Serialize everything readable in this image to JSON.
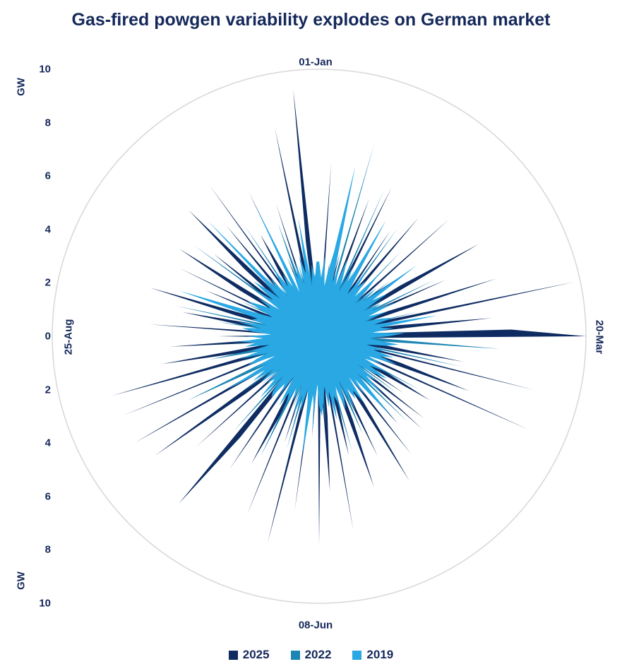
{
  "title": "Gas-fired powgen variability explodes on German market",
  "colors": {
    "title_text": "#14285a",
    "axis_text": "#14285a",
    "grid": "#d9d9d9",
    "background": "#ffffff"
  },
  "axis": {
    "unit_label": "GW",
    "tick_labels": [
      "10",
      "8",
      "6",
      "4",
      "2",
      "0",
      "2",
      "4",
      "6",
      "8",
      "10"
    ],
    "angle_labels": {
      "top": "01-Jan",
      "right": "20-Mar",
      "bottom": "08-Jun",
      "left": "25-Aug"
    }
  },
  "legend": {
    "items": [
      {
        "label": "2025",
        "color": "#0e2c62"
      },
      {
        "label": "2022",
        "color": "#1c85b4"
      },
      {
        "label": "2019",
        "color": "#29a8e4"
      }
    ]
  },
  "chart_data": {
    "type": "area",
    "polar": true,
    "title": "Gas-fired powgen variability explodes on German market",
    "radial_label": "GW",
    "rlim": [
      0,
      10
    ],
    "grid": "outer-circle-only",
    "legend_position": "bottom",
    "angle_axis": {
      "labels": [
        "01-Jan",
        "20-Mar",
        "08-Jun",
        "25-Aug"
      ],
      "positions_deg": [
        0,
        90,
        180,
        270
      ],
      "direction": "clockwise-from-top"
    },
    "series": [
      {
        "name": "2025",
        "color": "#0e2c62",
        "z": "bottom",
        "values": [
          2.1,
          1.0,
          6.5,
          1.2,
          2.8,
          0.9,
          1.5,
          3.2,
          1.1,
          2.0,
          5.5,
          1.4,
          2.2,
          6.2,
          1.0,
          3.5,
          1.2,
          4.8,
          1.6,
          2.4,
          5.8,
          1.1,
          3.0,
          1.5,
          6.6,
          1.2,
          2.5,
          4.2,
          1.0,
          3.6,
          6.9,
          1.3,
          2.0,
          5.2,
          1.1,
          2.8,
          7.0,
          1.4,
          2.2,
          9.8,
          1.2,
          3.0,
          6.5,
          1.5,
          7.2,
          10.0,
          1.8,
          4.0,
          1.2,
          2.6,
          5.5,
          1.3,
          8.3,
          1.1,
          3.2,
          6.0,
          1.4,
          8.6,
          1.2,
          2.8,
          4.8,
          1.5,
          3.8,
          1.2,
          5.0,
          2.0,
          5.2,
          1.1,
          2.4,
          4.4,
          1.3,
          5.6,
          1.8,
          3.0,
          6.4,
          1.2,
          2.2,
          5.0,
          1.5,
          3.4,
          6.0,
          1.2,
          2.6,
          4.6,
          1.4,
          7.4,
          1.1,
          3.0,
          5.8,
          1.6,
          7.8,
          1.4,
          3.6,
          1.1,
          6.6,
          1.3,
          2.4,
          8.0,
          1.2,
          4.2,
          1.6,
          7.2,
          1.1,
          3.2,
          5.4,
          1.3,
          2.0,
          6.0,
          1.2,
          4.8,
          8.2,
          1.4,
          2.8,
          1.1,
          6.2,
          1.5,
          3.5,
          7.6,
          1.2,
          2.2,
          8.0,
          1.3,
          4.0,
          1.1,
          7.9,
          1.6,
          2.6,
          8.1,
          1.2,
          3.0,
          6.0,
          1.4,
          2.4,
          5.6,
          1.1,
          3.8,
          1.3,
          6.4,
          1.2,
          2.8,
          5.2,
          1.5,
          3.2,
          6.6,
          1.1,
          2.0,
          4.6,
          1.3,
          5.8,
          1.2,
          3.4,
          6.2,
          1.4,
          2.6,
          5.0,
          1.1,
          3.8,
          6.8,
          1.2,
          2.2,
          5.4,
          1.3,
          7.0,
          1.1,
          2.8,
          4.4,
          1.5,
          6.0,
          1.2,
          3.2,
          1.4,
          5.2,
          1.1,
          2.4,
          8.0,
          1.2,
          3.6,
          9.3,
          1.5,
          2.0
        ]
      },
      {
        "name": "2022",
        "color": "#1c85b4",
        "z": "middle",
        "values": [
          1.5,
          2.2,
          1.0,
          1.8,
          2.6,
          1.2,
          2.0,
          1.4,
          7.5,
          1.1,
          2.4,
          1.3,
          6.0,
          1.0,
          2.8,
          1.5,
          2.2,
          1.2,
          5.0,
          1.4,
          2.0,
          1.1,
          4.4,
          1.3,
          2.6,
          1.0,
          3.4,
          1.5,
          2.2,
          1.2,
          2.8,
          1.4,
          4.8,
          1.1,
          2.0,
          1.3,
          2.4,
          1.0,
          3.8,
          1.2,
          2.6,
          1.5,
          2.0,
          1.1,
          3.2,
          1.4,
          2.4,
          6.8,
          1.2,
          2.8,
          1.3,
          5.5,
          1.0,
          2.2,
          1.5,
          3.0,
          1.2,
          2.6,
          1.4,
          4.2,
          1.1,
          2.4,
          1.3,
          3.6,
          1.0,
          2.0,
          1.5,
          4.6,
          1.2,
          2.8,
          1.4,
          2.2,
          1.1,
          3.0,
          1.3,
          2.6,
          1.0,
          2.0,
          4.0,
          1.2,
          2.4,
          1.5,
          4.5,
          1.1,
          2.8,
          1.3,
          2.2,
          1.4,
          3.4,
          1.0,
          2.6,
          1.2,
          3.8,
          1.5,
          2.0,
          1.1,
          2.4,
          1.3,
          4.4,
          1.4,
          2.8,
          1.0,
          2.2,
          5.0,
          1.2,
          2.6,
          1.5,
          3.2,
          1.1,
          2.0,
          1.3,
          4.8,
          1.4,
          2.4,
          1.0,
          2.8,
          1.2,
          3.6,
          1.5,
          2.2,
          1.1,
          2.6,
          5.5,
          1.3,
          2.0,
          1.4,
          3.0,
          1.2,
          2.4,
          4.2,
          1.0,
          2.8,
          1.5,
          3.4,
          1.1,
          2.2,
          1.3,
          2.6,
          1.2,
          3.8,
          1.4,
          5.5,
          1.0,
          2.0,
          1.5,
          2.8,
          1.2,
          3.2,
          1.3,
          2.4,
          1.1,
          2.6,
          1.4,
          5.8,
          1.2,
          2.2,
          1.0,
          2.8,
          1.5,
          3.0,
          1.3,
          2.4,
          1.2,
          5.0,
          1.1,
          2.6,
          1.4,
          3.4,
          1.0,
          2.0,
          4.5,
          1.2,
          2.8,
          1.5,
          2.2,
          1.3,
          3.0,
          1.1,
          2.4,
          1.4
        ]
      },
      {
        "name": "2019",
        "color": "#29a8e4",
        "z": "top",
        "values": [
          2.8,
          2.2,
          3.0,
          1.9,
          2.5,
          3.2,
          6.5,
          2.1,
          2.7,
          2.0,
          3.1,
          2.4,
          1.8,
          2.9,
          2.2,
          5.0,
          2.6,
          1.9,
          3.0,
          2.3,
          2.7,
          2.0,
          3.2,
          2.5,
          1.8,
          2.8,
          2.1,
          4.5,
          2.4,
          3.0,
          1.9,
          2.6,
          2.2,
          3.1,
          2.0,
          2.7,
          1.8,
          2.4,
          2.9,
          2.1,
          4.5,
          2.3,
          2.8,
          2.0,
          3.2,
          2.6,
          1.9,
          2.2,
          3.0,
          2.5,
          1.8,
          2.7,
          2.1,
          2.9,
          2.4,
          3.1,
          2.0,
          2.6,
          1.9,
          2.8,
          2.2,
          3.0,
          2.5,
          1.8,
          2.7,
          2.3,
          3.2,
          2.0,
          2.6,
          4.0,
          2.1,
          2.8,
          1.9,
          3.0,
          2.4,
          2.7,
          2.2,
          3.1,
          1.8,
          2.5,
          2.9,
          2.0,
          2.6,
          2.3,
          3.2,
          2.1,
          2.7,
          1.9,
          2.4,
          3.0,
          2.6,
          1.8,
          2.8,
          2.2,
          4.5,
          2.5,
          2.0,
          2.9,
          2.3,
          3.1,
          1.9,
          2.6,
          2.1,
          2.8,
          2.4,
          3.0,
          1.8,
          2.5,
          2.2,
          2.9,
          2.7,
          2.0,
          3.2,
          2.3,
          2.6,
          1.9,
          2.8,
          2.1,
          3.0,
          2.4,
          4.0,
          2.2,
          2.7,
          1.8,
          2.9,
          2.5,
          2.0,
          3.1,
          2.3,
          2.6,
          1.9,
          2.8,
          2.4,
          3.0,
          2.1,
          2.7,
          1.8,
          2.5,
          2.9,
          2.2,
          3.1,
          2.0,
          2.6,
          2.4,
          5.5,
          2.8,
          1.9,
          2.3,
          3.0,
          2.5,
          2.1,
          2.7,
          1.8,
          2.9,
          2.2,
          3.2,
          2.6,
          2.0,
          6.0,
          2.4,
          2.8,
          1.9,
          2.5,
          3.0,
          2.2,
          2.7,
          2.1,
          5.5,
          1.8,
          2.6,
          2.3,
          2.9,
          2.0,
          3.1,
          2.4,
          4.5,
          1.9,
          2.7,
          2.2,
          2.8
        ]
      }
    ]
  }
}
